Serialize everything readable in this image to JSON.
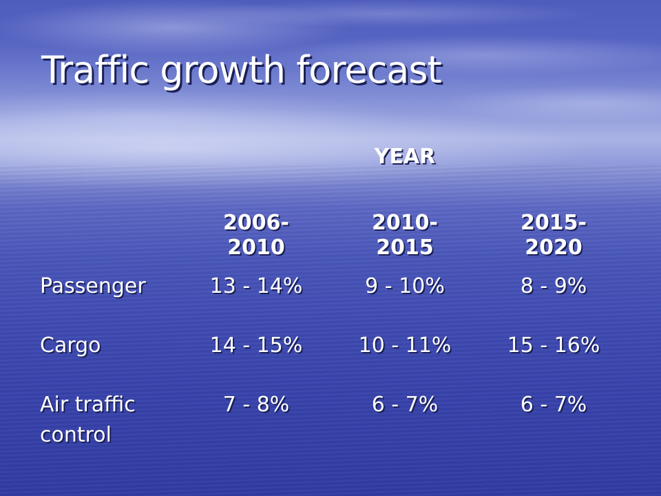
{
  "slide": {
    "title": "Traffic growth forecast",
    "table": {
      "group_header": "YEAR",
      "columns": [
        {
          "line1": "2006-",
          "line2": "2010"
        },
        {
          "line1": "2010-",
          "line2": "2015"
        },
        {
          "line1": "2015-",
          "line2": "2020"
        }
      ],
      "rows": [
        {
          "label_line1": "Passenger",
          "label_line2": "",
          "values": [
            "13 - 14%",
            "9 - 10%",
            "8 - 9%"
          ]
        },
        {
          "label_line1": "Cargo",
          "label_line2": "",
          "values": [
            "14 - 15%",
            "10 - 11%",
            "15 - 16%"
          ]
        },
        {
          "label_line1": "Air traffic",
          "label_line2": "control",
          "values": [
            "7 - 8%",
            "6 - 7%",
            "6 - 7%"
          ]
        }
      ]
    }
  }
}
